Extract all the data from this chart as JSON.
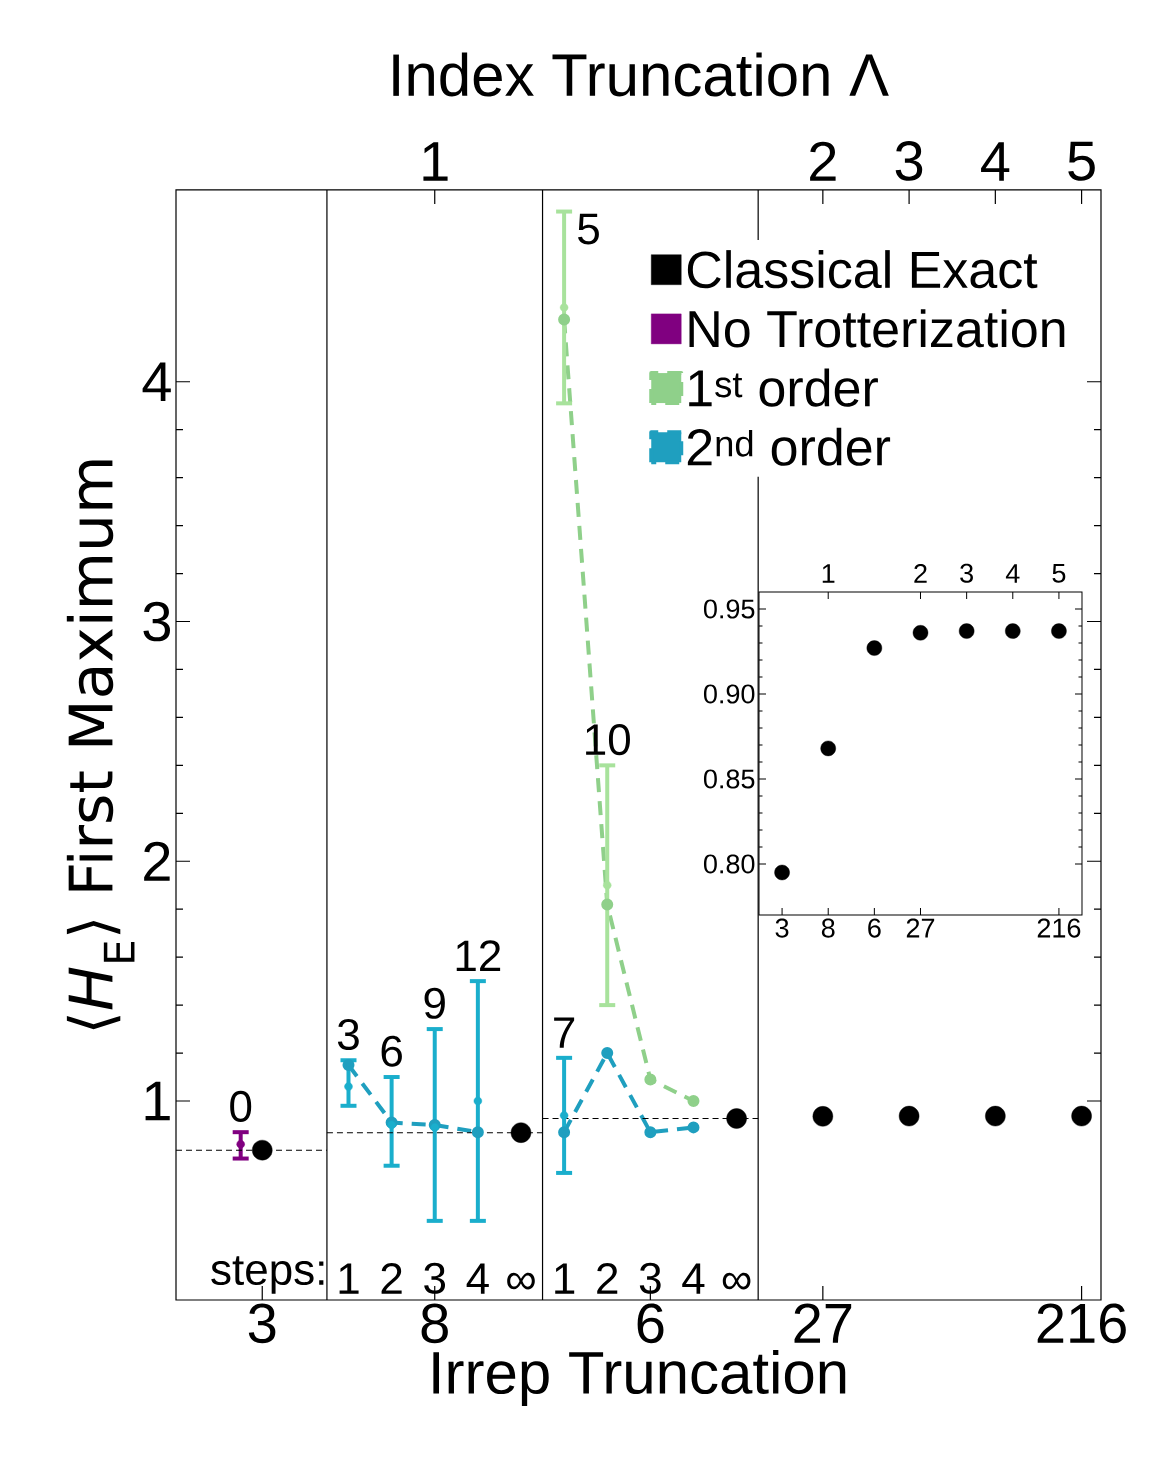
{
  "chart_data": [
    {
      "type": "scatter",
      "xlabel": "Irrep Truncation",
      "ylabel": "⟨*H*$_{E}$⟩  First Maximum",
      "x2label": "Index Truncation  Λ",
      "categories": [
        null,
        null,
        null,
        null,
        "3",
        null,
        null,
        null,
        null,
        null,
        null,
        null,
        "8",
        null,
        null,
        null,
        null,
        null,
        null,
        null,
        null,
        null,
        "6",
        null,
        null,
        null,
        null,
        null,
        null,
        null,
        "27",
        null,
        null,
        null,
        null,
        null,
        null,
        null,
        null,
        null,
        null,
        null,
        "216"
      ],
      "ylim": [
        0.17,
        4.8
      ],
      "yticks": [
        1,
        2,
        3,
        4
      ],
      "marker": "circle",
      "legend": "top right",
      "series": [
        {
          "name": "Classical Exact",
          "color": "#000000",
          "values": [
            null,
            null,
            null,
            null,
            0.795,
            null,
            null,
            null,
            null,
            null,
            null,
            null,
            null,
            null,
            null,
            null,
            0.868,
            null,
            null,
            null,
            null,
            null,
            null,
            null,
            null,
            null,
            0.927,
            null,
            null,
            null,
            0.936,
            null,
            null,
            null,
            0.937,
            null,
            null,
            null,
            0.937,
            null,
            null,
            null,
            0.937
          ]
        },
        {
          "name": "No Trotterization",
          "color": "#800080",
          "values": [
            null,
            null,
            null,
            0.82,
            null,
            null,
            null,
            null,
            null,
            null,
            null,
            null,
            null,
            null,
            null,
            null,
            null,
            null,
            null,
            null,
            null,
            null,
            null,
            null,
            null,
            null,
            null,
            null,
            null,
            null,
            null,
            null,
            null,
            null,
            null,
            null,
            null,
            null,
            null,
            null,
            null,
            null,
            null
          ],
          "errors": [
            null,
            null,
            null,
            [
              0.76,
              0.87
            ],
            null,
            null,
            null,
            null,
            null,
            null,
            null,
            null,
            null,
            null,
            null,
            null,
            null,
            null,
            null,
            null,
            null,
            null,
            null,
            null,
            null,
            null,
            null,
            null,
            null,
            null,
            null,
            null,
            null,
            null,
            null,
            null,
            null,
            null,
            null,
            null,
            null,
            null,
            null
          ]
        },
        {
          "name": "1$^{st}$ order",
          "type": "line",
          "line_style": "dashed",
          "color": "#8fd08a",
          "values": [
            null,
            null,
            null,
            null,
            null,
            null,
            null,
            null,
            null,
            null,
            null,
            null,
            null,
            null,
            null,
            null,
            null,
            null,
            4.26,
            null,
            1.82,
            null,
            1.09,
            null,
            1.0,
            null,
            null,
            null,
            null,
            null,
            null,
            null,
            null,
            null,
            null,
            null,
            null,
            null,
            null,
            null,
            null,
            null,
            null
          ]
        },
        {
          "color": "#a8e29c",
          "values": [
            null,
            null,
            null,
            null,
            null,
            null,
            null,
            null,
            null,
            null,
            null,
            null,
            null,
            null,
            null,
            null,
            null,
            null,
            4.31,
            null,
            1.9,
            null,
            null,
            null,
            null,
            null,
            null,
            null,
            null,
            null,
            null,
            null,
            null,
            null,
            null,
            null,
            null,
            null,
            null,
            null,
            null,
            null,
            null
          ],
          "errors": [
            null,
            null,
            null,
            null,
            null,
            null,
            null,
            null,
            null,
            null,
            null,
            null,
            null,
            null,
            null,
            null,
            null,
            null,
            [
              3.91,
              4.71
            ],
            null,
            [
              1.4,
              2.4
            ],
            null,
            null,
            null,
            null,
            null,
            null,
            null,
            null,
            null,
            null,
            null,
            null,
            null,
            null,
            null,
            null,
            null,
            null,
            null,
            null,
            null,
            null
          ]
        },
        {
          "name": "2$^{nd}$ order",
          "type": "line",
          "line_style": "dashed",
          "color": "#1f9fbf",
          "values": [
            null,
            null,
            null,
            null,
            null,
            null,
            null,
            null,
            1.15,
            null,
            0.91,
            null,
            0.9,
            null,
            0.87,
            null,
            null,
            null,
            null,
            null,
            null,
            null,
            null,
            null,
            null,
            null,
            null,
            null,
            null,
            null,
            null,
            null,
            null,
            null,
            null,
            null,
            null,
            null,
            null,
            null,
            null,
            null,
            null
          ]
        },
        {
          "type": "line",
          "line_style": "dashed",
          "color": "#1f9fbf",
          "values": [
            null,
            null,
            null,
            null,
            null,
            null,
            null,
            null,
            null,
            null,
            null,
            null,
            null,
            null,
            null,
            null,
            null,
            null,
            0.87,
            null,
            1.2,
            null,
            0.87,
            null,
            0.89,
            null,
            null,
            null,
            null,
            null,
            null,
            null,
            null,
            null,
            null,
            null,
            null,
            null,
            null,
            null,
            null,
            null,
            null
          ]
        },
        {
          "color": "#1aaecc",
          "values": [
            null,
            null,
            null,
            null,
            null,
            null,
            null,
            null,
            1.06,
            null,
            0.9,
            null,
            0.89,
            null,
            1.0,
            null,
            null,
            null,
            0.94,
            null,
            null,
            null,
            null,
            null,
            null,
            null,
            null,
            null,
            null,
            null,
            null,
            null,
            null,
            null,
            null,
            null,
            null,
            null,
            null,
            null,
            null,
            null,
            null
          ],
          "errors": [
            null,
            null,
            null,
            null,
            null,
            null,
            null,
            null,
            [
              0.98,
              1.17
            ],
            null,
            [
              0.73,
              1.1
            ],
            null,
            [
              0.5,
              1.3
            ],
            null,
            [
              0.5,
              1.5
            ],
            null,
            null,
            null,
            [
              0.7,
              1.18
            ],
            null,
            null,
            null,
            null,
            null,
            null,
            null,
            null,
            null,
            null,
            null,
            null,
            null,
            null,
            null,
            null,
            null,
            null,
            null,
            null,
            null,
            null,
            null,
            null
          ]
        },
        {
          "type": "line",
          "line_style": "dashed",
          "marker": "none",
          "color": "#000000",
          "values": [
            0.795,
            0.795,
            0.795,
            0.795,
            0.795,
            0.795,
            0.795,
            0.795,
            null,
            null,
            null,
            null,
            null,
            null,
            null,
            null,
            null,
            null,
            null,
            null,
            null,
            null,
            null,
            null,
            null,
            null,
            null,
            null,
            null,
            null,
            null,
            null,
            null,
            null,
            null,
            null,
            null,
            null,
            null,
            null,
            null,
            null,
            null
          ]
        },
        {
          "type": "line",
          "line_style": "dashed",
          "marker": "none",
          "color": "#000000",
          "values": [
            null,
            null,
            null,
            null,
            null,
            null,
            null,
            0.868,
            0.868,
            0.868,
            0.868,
            0.868,
            0.868,
            0.868,
            0.868,
            0.868,
            0.868,
            0.868,
            null,
            null,
            null,
            null,
            null,
            null,
            null,
            null,
            null,
            null,
            null,
            null,
            null,
            null,
            null,
            null,
            null,
            null,
            null,
            null,
            null,
            null,
            null,
            null,
            null
          ]
        },
        {
          "type": "line",
          "line_style": "dashed",
          "marker": "none",
          "color": "#000000",
          "values": [
            null,
            null,
            null,
            null,
            null,
            null,
            null,
            null,
            null,
            null,
            null,
            null,
            null,
            null,
            null,
            null,
            null,
            0.927,
            0.927,
            0.927,
            0.927,
            0.927,
            0.927,
            0.927,
            0.927,
            0.927,
            0.927,
            0.927,
            null,
            null,
            null,
            null,
            null,
            null,
            null,
            null,
            null,
            null,
            null,
            null,
            null,
            null,
            null
          ]
        }
      ],
      "annotations": [
        "0",
        "5",
        "10",
        "3",
        "6",
        "9",
        "12",
        "7",
        "steps:",
        "1",
        "2",
        "3",
        "4",
        "∞",
        "1",
        "2",
        "3",
        "4",
        "∞",
        "1",
        "2",
        "3",
        "4",
        "5"
      ]
    },
    {
      "type": "scatter",
      "categories": [
        "3",
        "8",
        "6",
        "27",
        null,
        null,
        "216"
      ],
      "ylim": [
        0.77,
        0.96
      ],
      "yticks": [
        {
          "value": 0.8,
          "label": "0.80"
        },
        {
          "value": 0.85,
          "label": "0.85"
        },
        {
          "value": 0.9,
          "label": "0.90"
        },
        {
          "value": 0.95,
          "label": "0.95"
        }
      ],
      "marker": "circle",
      "series": [
        {
          "color": "#000000",
          "values": [
            0.795,
            0.868,
            0.927,
            0.936,
            0.937,
            0.937,
            0.937
          ]
        }
      ],
      "annotations": [
        "1",
        "2",
        "3",
        "4",
        "5"
      ]
    }
  ]
}
